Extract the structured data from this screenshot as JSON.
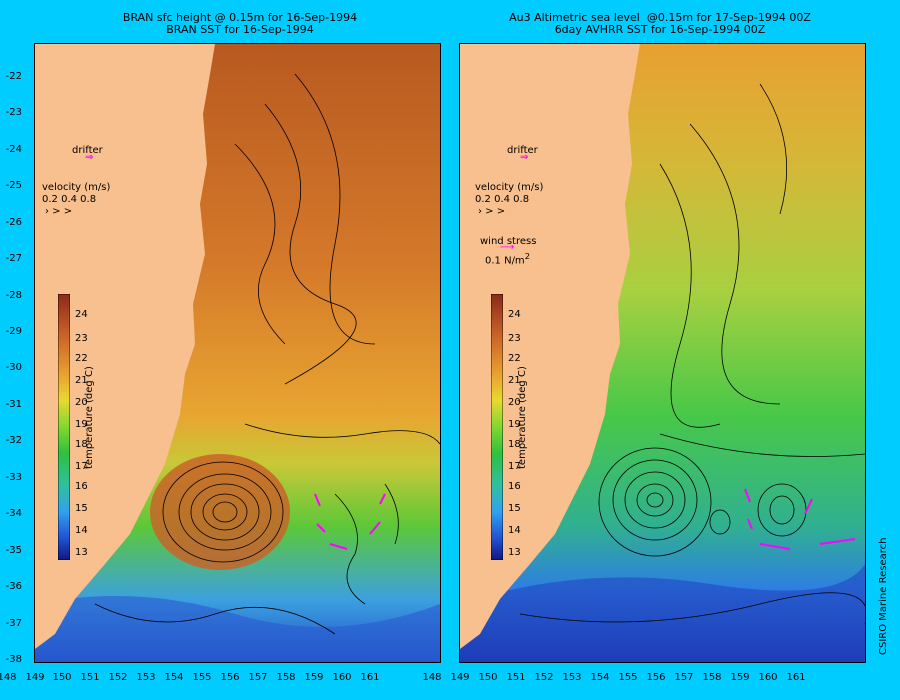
{
  "left_panel": {
    "title_line1": "BRAN sfc height @ 0.15m for 16-Sep-1994",
    "title_line2": "BRAN SST for 16-Sep-1994"
  },
  "right_panel": {
    "title_line1": "Au3 Altimetric sea level  @0.15m for 17-Sep-1994 00Z",
    "title_line2": "6day AVHRR SST for 16-Sep-1994 00Z"
  },
  "legend": {
    "drifter": "drifter",
    "velocity_label": "velocity (m/s)",
    "velocity_values": "0.2 0.4 0.8",
    "wind_label": "wind stress",
    "wind_value": "0.1 N/m",
    "wind_exp": "2",
    "colorbar_label": "temperature (deg C)",
    "colorbar_ticks": [
      "24",
      "23",
      "22",
      "21",
      "20",
      "19",
      "18",
      "17",
      "16",
      "15",
      "14",
      "13"
    ]
  },
  "axes": {
    "y_ticks": [
      "-22",
      "-23",
      "-24",
      "-25",
      "-26",
      "-27",
      "-28",
      "-29",
      "-30",
      "-31",
      "-32",
      "-33",
      "-34",
      "-35",
      "-36",
      "-37",
      "-38"
    ],
    "x_ticks": [
      "148",
      "149",
      "150",
      "151",
      "152",
      "153",
      "154",
      "155",
      "156",
      "157",
      "158",
      "159",
      "160",
      "161"
    ]
  },
  "credit": "CSIRO Marine Research",
  "colors": {
    "background": "#00ccff",
    "land": "#f7c08e",
    "drifter_arrow": "#ff00ff",
    "warm": "#c0622a",
    "cool": "#2e64e6"
  }
}
